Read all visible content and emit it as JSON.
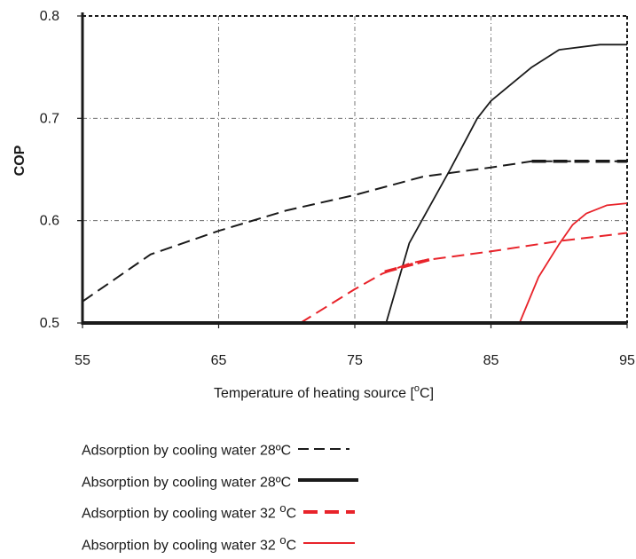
{
  "chart_data": {
    "type": "line",
    "xlabel_text": "Temperature of heating source [",
    "xlabel_sup": "o",
    "xlabel_unit": "C]",
    "ylabel": "COP",
    "xlim": [
      55,
      95
    ],
    "ylim": [
      0.5,
      0.8
    ],
    "xticks": [
      "55",
      "65",
      "75",
      "85",
      "95"
    ],
    "yticks": [
      "0.5",
      "0.6",
      "0.7",
      "0.8"
    ],
    "grid": true,
    "legend_position": "bottom",
    "series": [
      {
        "name": "Adsorption by cooling water 28ºC",
        "name_main": "Adsorption by cooling water 28ºC",
        "name_sup": "",
        "name_tail": "",
        "color": "#1a1a1a",
        "style": "dashed-thin",
        "x": [
          55,
          60,
          65,
          70,
          75,
          80,
          85,
          88,
          90,
          95
        ],
        "y": [
          0.521,
          0.567,
          0.59,
          0.61,
          0.625,
          0.643,
          0.652,
          0.658,
          0.658,
          0.658
        ]
      },
      {
        "name": "Absorption by cooling water 28ºC",
        "name_main": "Absorption by cooling water 28ºC",
        "name_sup": "",
        "name_tail": "",
        "color": "#1a1a1a",
        "style": "solid-thin",
        "x": [
          77.3,
          79,
          82,
          84,
          85,
          88,
          90,
          93,
          95
        ],
        "y": [
          0.5,
          0.578,
          0.65,
          0.7,
          0.717,
          0.75,
          0.767,
          0.772,
          0.772
        ]
      },
      {
        "name": "Adsorption by cooling water 32 °C",
        "name_main": "Adsorption by cooling water 32 ",
        "name_sup": "o",
        "name_tail": "C",
        "color": "#e8232a",
        "style": "dashed-thin",
        "x": [
          71,
          75,
          77,
          79,
          80,
          85,
          90,
          95
        ],
        "y": [
          0.5,
          0.533,
          0.548,
          0.558,
          0.561,
          0.57,
          0.58,
          0.588
        ]
      },
      {
        "name": "Absorption by cooling water 32 °C",
        "name_main": "Absorption by cooling water 32 ",
        "name_sup": "o",
        "name_tail": "C",
        "color": "#e8232a",
        "style": "solid-thin",
        "x": [
          87.1,
          88.5,
          90,
          91,
          92,
          93.5,
          95
        ],
        "y": [
          0.5,
          0.545,
          0.577,
          0.596,
          0.607,
          0.615,
          0.617
        ]
      }
    ]
  }
}
